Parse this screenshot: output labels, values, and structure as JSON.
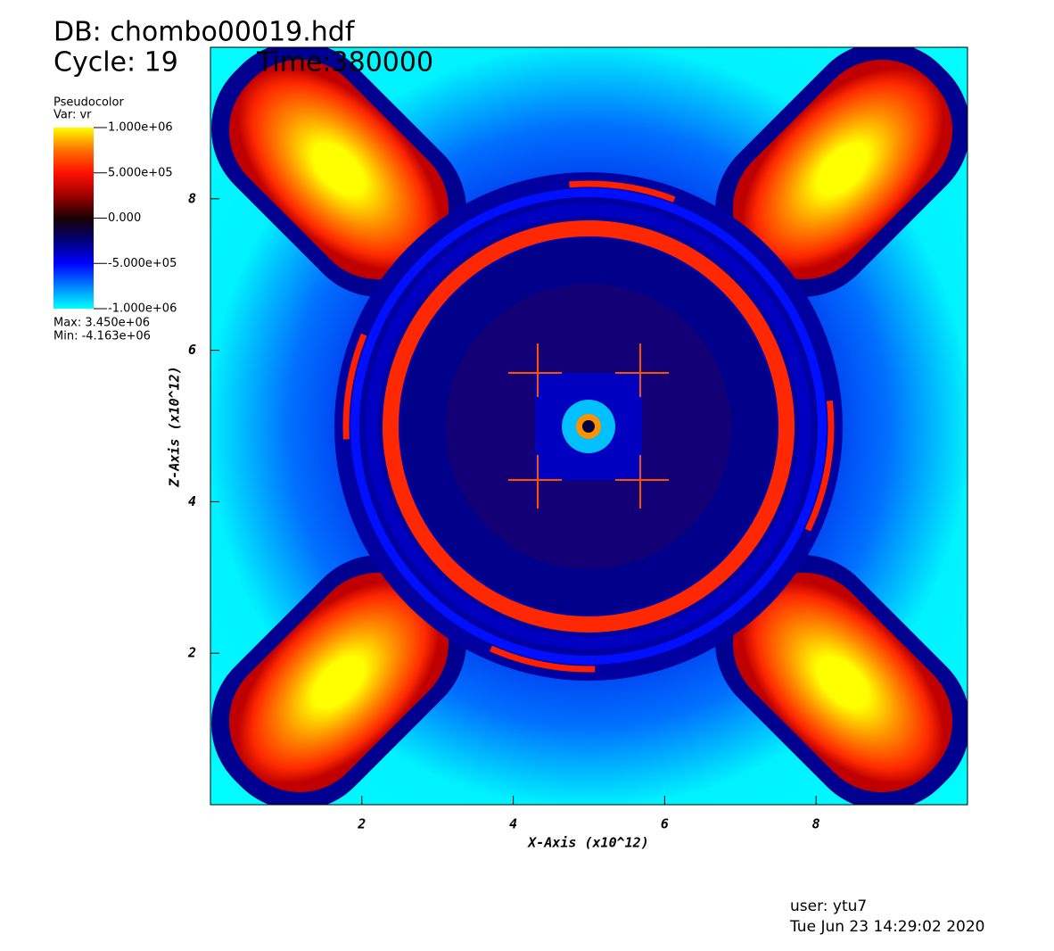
{
  "header": {
    "db": "DB: chombo00019.hdf",
    "cycle": "Cycle: 19",
    "time": "Time:380000"
  },
  "legend": {
    "plot": "Pseudocolor",
    "var": "Var: vr",
    "range": [
      -1000000,
      1000000
    ],
    "ticks": [
      {
        "value": 1000000,
        "label": "1.000e+06"
      },
      {
        "value": 500000,
        "label": "5.000e+05"
      },
      {
        "value": 0,
        "label": "0.000"
      },
      {
        "value": -500000,
        "label": "-5.000e+05"
      },
      {
        "value": -1000000,
        "label": "-1.000e+06"
      }
    ],
    "colormap": [
      "#00ffff",
      "#0080ff",
      "#0000ff",
      "#00007a",
      "#1a0000",
      "#a00000",
      "#ff1000",
      "#ff7000",
      "#ffff00"
    ],
    "max": "Max:  3.450e+06",
    "min": "Min: -4.163e+06"
  },
  "chart_data": {
    "type": "pseudocolor",
    "x_label": "X-Axis (x10^12)",
    "y_label": "Z-Axis (x10^12)",
    "xlim": [
      0,
      10
    ],
    "ylim": [
      0,
      10
    ],
    "xticks": [
      2,
      4,
      6,
      8
    ],
    "yticks": [
      2,
      4,
      6,
      8
    ]
  },
  "footer": {
    "user": "user: ytu7",
    "date": "Tue Jun 23 14:29:02 2020"
  }
}
